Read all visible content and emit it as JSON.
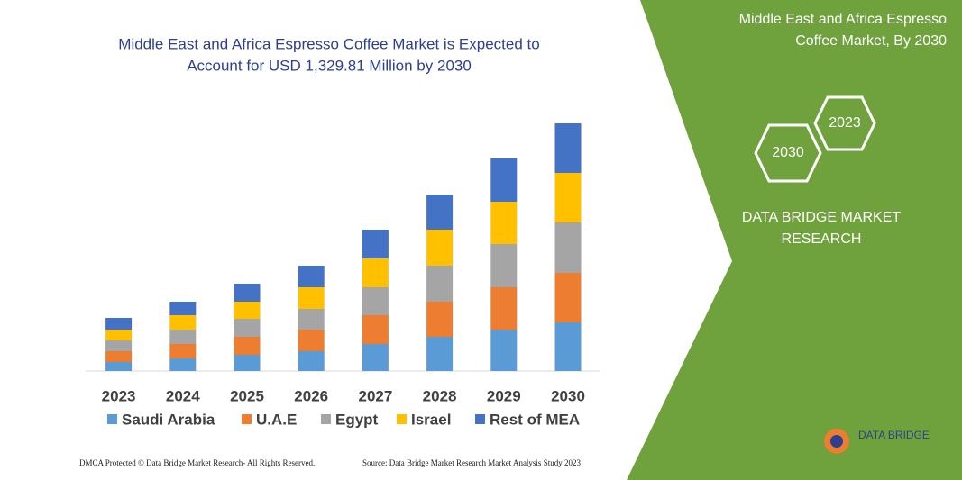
{
  "chart_data": {
    "type": "stacked_bar",
    "title": [
      "Middle East and Africa Espresso Coffee Market is Expected to",
      "Account for USD 1,329.81 Million by 2030"
    ],
    "categories": [
      "2023",
      "2024",
      "2025",
      "2026",
      "2027",
      "2028",
      "2029",
      "2030"
    ],
    "series": [
      {
        "name": "Saudi Arabia",
        "color": "#5b9bd5",
        "values": [
          10,
          14,
          18,
          22,
          30,
          38,
          46,
          54
        ]
      },
      {
        "name": "U.A.E",
        "color": "#ed7d31",
        "values": [
          12,
          16,
          20,
          24,
          32,
          39,
          47,
          55
        ]
      },
      {
        "name": "Egypt",
        "color": "#a5a5a5",
        "values": [
          12,
          16,
          20,
          23,
          31,
          40,
          48,
          56
        ]
      },
      {
        "name": "Israel",
        "color": "#ffc000",
        "values": [
          12,
          16,
          19,
          24,
          32,
          40,
          47,
          55
        ]
      },
      {
        "name": "Rest of MEA",
        "color": "#4472c4",
        "values": [
          13,
          15,
          20,
          24,
          32,
          39,
          48,
          55
        ]
      }
    ],
    "ylim": [
      0,
      280
    ]
  },
  "panel": {
    "title": [
      "Middle East and Africa Espresso",
      "Coffee Market, By 2030"
    ],
    "hex_years": [
      "2023",
      "2030"
    ],
    "brand": [
      "DATA BRIDGE MARKET",
      "RESEARCH"
    ],
    "logo": "DATA BRIDGE"
  },
  "footer": {
    "left": "DMCA Protected © Data Bridge Market Research- All Rights Reserved.",
    "right": "Source: Data Bridge Market Research Market Analysis Study 2023"
  }
}
